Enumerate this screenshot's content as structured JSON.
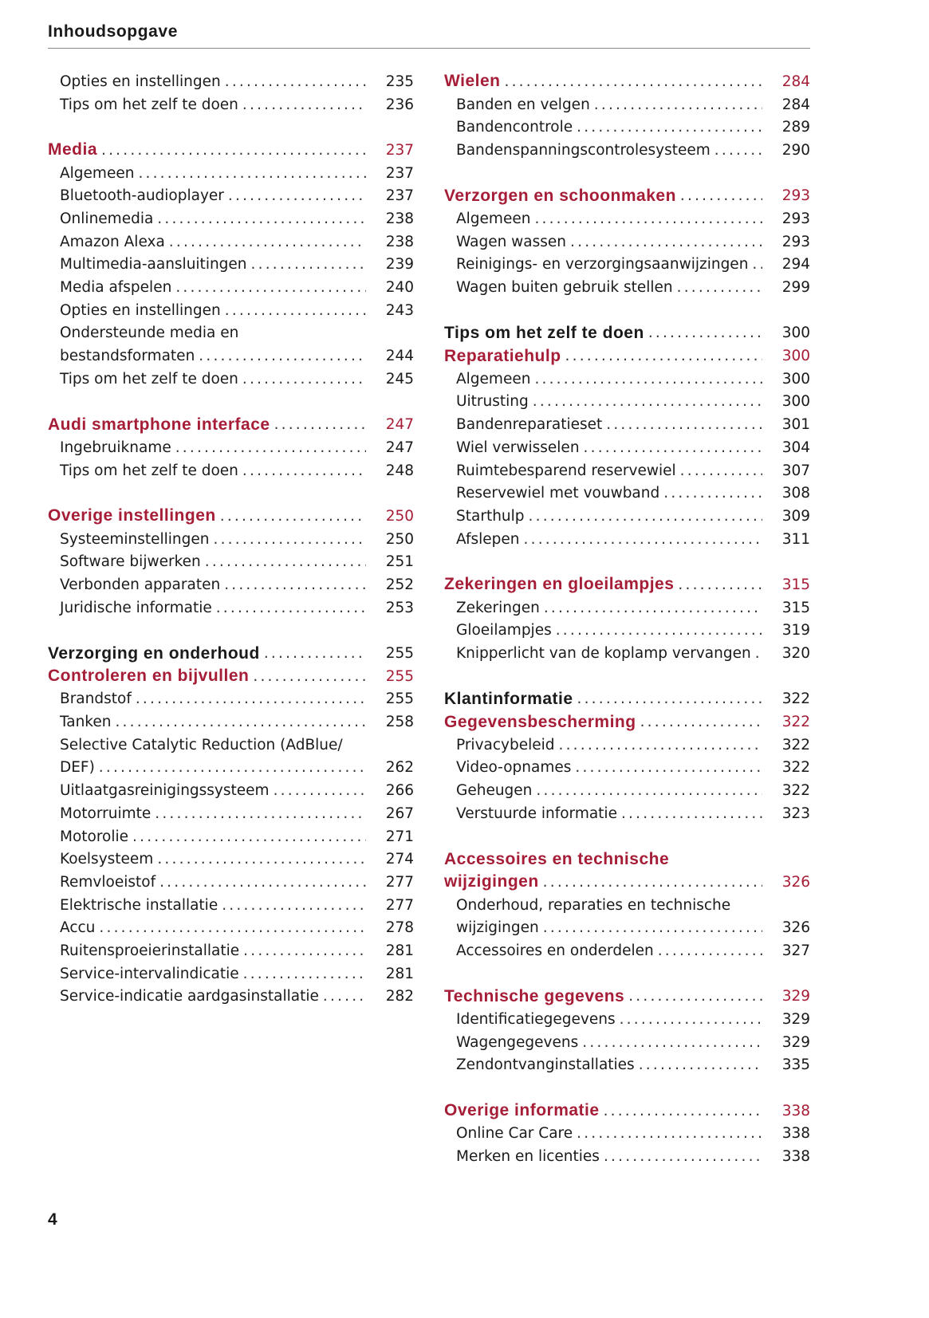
{
  "header": {
    "title": "Inhoudsopgave"
  },
  "page_number": "4",
  "colors": {
    "accent": "#a51d36",
    "text": "#1a1a1a"
  },
  "columns": [
    [
      {
        "type": "entry",
        "title": "Opties en instellingen",
        "page": "235"
      },
      {
        "type": "entry",
        "title": "Tips om het zelf te doen",
        "page": "236"
      },
      {
        "type": "gap"
      },
      {
        "type": "sec-red",
        "title": "Media",
        "page": "237"
      },
      {
        "type": "entry",
        "title": "Algemeen",
        "page": "237"
      },
      {
        "type": "entry",
        "title": "Bluetooth-audioplayer",
        "page": "237"
      },
      {
        "type": "entry",
        "title": "Onlinemedia",
        "page": "238"
      },
      {
        "type": "entry",
        "title": "Amazon Alexa",
        "page": "238"
      },
      {
        "type": "entry",
        "title": "Multimedia-aansluitingen",
        "page": "239"
      },
      {
        "type": "entry",
        "title": "Media afspelen",
        "page": "240"
      },
      {
        "type": "entry",
        "title": "Opties en instellingen",
        "page": "243"
      },
      {
        "type": "wrap",
        "title": "Ondersteunde media en"
      },
      {
        "type": "entry",
        "title": "bestandsformaten",
        "page": "244"
      },
      {
        "type": "entry",
        "title": "Tips om het zelf te doen",
        "page": "245"
      },
      {
        "type": "gap"
      },
      {
        "type": "sec-red",
        "title": "Audi smartphone interface",
        "page": "247"
      },
      {
        "type": "entry",
        "title": "Ingebruikname",
        "page": "247"
      },
      {
        "type": "entry",
        "title": "Tips om het zelf te doen",
        "page": "248"
      },
      {
        "type": "gap"
      },
      {
        "type": "sec-red",
        "title": "Overige instellingen",
        "page": "250"
      },
      {
        "type": "entry",
        "title": "Systeeminstellingen",
        "page": "250"
      },
      {
        "type": "entry",
        "title": "Software bijwerken",
        "page": "251"
      },
      {
        "type": "entry",
        "title": "Verbonden apparaten",
        "page": "252"
      },
      {
        "type": "entry",
        "title": "Juridische informatie",
        "page": "253"
      },
      {
        "type": "gap"
      },
      {
        "type": "sec",
        "title": "Verzorging en onderhoud",
        "page": "255"
      },
      {
        "type": "sec-red",
        "title": "Controleren en bijvullen",
        "page": "255"
      },
      {
        "type": "entry",
        "title": "Brandstof",
        "page": "255"
      },
      {
        "type": "entry",
        "title": "Tanken",
        "page": "258"
      },
      {
        "type": "wrap",
        "title": "Selective Catalytic Reduction (AdBlue/"
      },
      {
        "type": "entry",
        "title": "DEF)",
        "page": "262"
      },
      {
        "type": "entry",
        "title": "Uitlaatgasreinigingssysteem",
        "page": "266"
      },
      {
        "type": "entry",
        "title": "Motorruimte",
        "page": "267"
      },
      {
        "type": "entry",
        "title": "Motorolie",
        "page": "271"
      },
      {
        "type": "entry",
        "title": "Koelsysteem",
        "page": "274"
      },
      {
        "type": "entry",
        "title": "Remvloeistof",
        "page": "277"
      },
      {
        "type": "entry",
        "title": "Elektrische installatie",
        "page": "277"
      },
      {
        "type": "entry",
        "title": "Accu",
        "page": "278"
      },
      {
        "type": "entry",
        "title": "Ruitensproeierinstallatie",
        "page": "281"
      },
      {
        "type": "entry",
        "title": "Service-intervalindicatie",
        "page": "281"
      },
      {
        "type": "entry",
        "title": "Service-indicatie aardgasinstallatie",
        "page": "282"
      }
    ],
    [
      {
        "type": "sec-red",
        "title": "Wielen",
        "page": "284"
      },
      {
        "type": "entry",
        "title": "Banden en velgen",
        "page": "284"
      },
      {
        "type": "entry",
        "title": "Bandencontrole",
        "page": "289"
      },
      {
        "type": "entry",
        "title": "Bandenspanningscontrolesysteem",
        "page": "290"
      },
      {
        "type": "gap"
      },
      {
        "type": "sec-red",
        "title": "Verzorgen en schoonmaken",
        "page": "293"
      },
      {
        "type": "entry",
        "title": "Algemeen",
        "page": "293"
      },
      {
        "type": "entry",
        "title": "Wagen wassen",
        "page": "293"
      },
      {
        "type": "entry",
        "title": "Reinigings- en verzorgingsaanwijzingen",
        "page": "294"
      },
      {
        "type": "entry",
        "title": "Wagen buiten gebruik stellen",
        "page": "299"
      },
      {
        "type": "gap"
      },
      {
        "type": "sec",
        "title": "Tips om het zelf te doen",
        "page": "300"
      },
      {
        "type": "sec-red",
        "title": "Reparatiehulp",
        "page": "300"
      },
      {
        "type": "entry",
        "title": "Algemeen",
        "page": "300"
      },
      {
        "type": "entry",
        "title": "Uitrusting",
        "page": "300"
      },
      {
        "type": "entry",
        "title": "Bandenreparatieset",
        "page": "301"
      },
      {
        "type": "entry",
        "title": "Wiel verwisselen",
        "page": "304"
      },
      {
        "type": "entry",
        "title": "Ruimtebesparend reservewiel",
        "page": "307"
      },
      {
        "type": "entry",
        "title": "Reservewiel met vouwband",
        "page": "308"
      },
      {
        "type": "entry",
        "title": "Starthulp",
        "page": "309"
      },
      {
        "type": "entry",
        "title": "Afslepen",
        "page": "311"
      },
      {
        "type": "gap"
      },
      {
        "type": "sec-red",
        "title": "Zekeringen en gloeilampjes",
        "page": "315"
      },
      {
        "type": "entry",
        "title": "Zekeringen",
        "page": "315"
      },
      {
        "type": "entry",
        "title": "Gloeilampjes",
        "page": "319"
      },
      {
        "type": "entry",
        "title": "Knipperlicht van de koplamp vervangen",
        "page": "320"
      },
      {
        "type": "gap"
      },
      {
        "type": "sec",
        "title": "Klantinformatie",
        "page": "322"
      },
      {
        "type": "sec-red",
        "title": "Gegevensbescherming",
        "page": "322"
      },
      {
        "type": "entry",
        "title": "Privacybeleid",
        "page": "322"
      },
      {
        "type": "entry",
        "title": "Video-opnames",
        "page": "322"
      },
      {
        "type": "entry",
        "title": "Geheugen",
        "page": "322"
      },
      {
        "type": "entry",
        "title": "Verstuurde informatie",
        "page": "323"
      },
      {
        "type": "gap"
      },
      {
        "type": "sec-red-wrap",
        "title": "Accessoires en technische"
      },
      {
        "type": "sec-red",
        "title": "wijzigingen",
        "page": "326"
      },
      {
        "type": "wrap",
        "title": "Onderhoud, reparaties en technische"
      },
      {
        "type": "entry",
        "title": "wijzigingen",
        "page": "326"
      },
      {
        "type": "entry",
        "title": "Accessoires en onderdelen",
        "page": "327"
      },
      {
        "type": "gap"
      },
      {
        "type": "sec-red",
        "title": "Technische gegevens",
        "page": "329"
      },
      {
        "type": "entry",
        "title": "Identificatiegegevens",
        "page": "329"
      },
      {
        "type": "entry",
        "title": "Wagengegevens",
        "page": "329"
      },
      {
        "type": "entry",
        "title": "Zendontvanginstallaties",
        "page": "335"
      },
      {
        "type": "gap"
      },
      {
        "type": "sec-red",
        "title": "Overige informatie",
        "page": "338"
      },
      {
        "type": "entry",
        "title": "Online Car Care",
        "page": "338"
      },
      {
        "type": "entry",
        "title": "Merken en licenties",
        "page": "338"
      }
    ]
  ]
}
